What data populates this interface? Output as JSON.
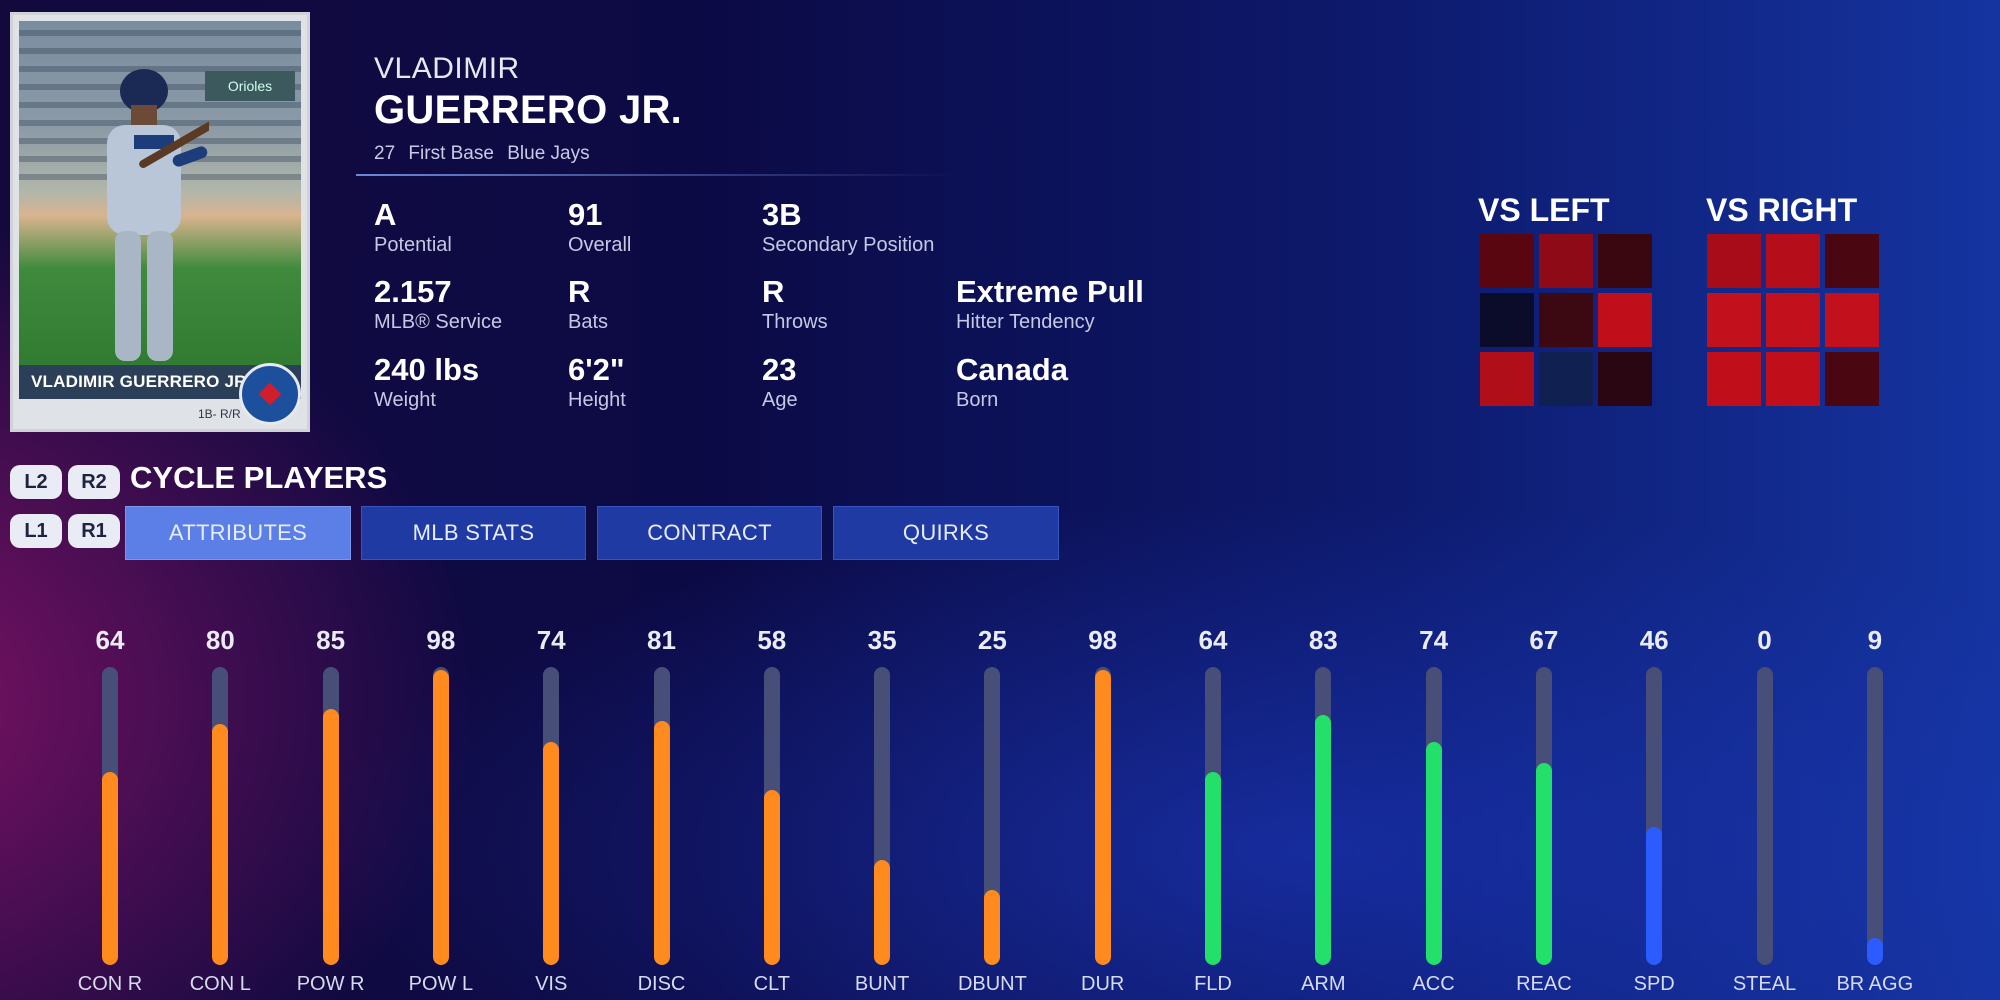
{
  "player": {
    "first_name": "VLADIMIR",
    "last_name": "GUERRERO JR.",
    "number": "27",
    "position": "First Base",
    "team": "Blue Jays"
  },
  "card": {
    "nameplate": "VLADIMIR GUERRERO JR.",
    "pos_bats_throws": "1B- R/R",
    "photo_sign": "Orioles"
  },
  "info": [
    {
      "value": "A",
      "label": "Potential"
    },
    {
      "value": "91",
      "label": "Overall"
    },
    {
      "value": "3B",
      "label": "Secondary Position"
    },
    {
      "value": "2.157",
      "label": "MLB® Service"
    },
    {
      "value": "R",
      "label": "Bats"
    },
    {
      "value": "R",
      "label": "Throws"
    },
    {
      "value": "Extreme Pull",
      "label": "Hitter Tendency"
    },
    {
      "value": "240 lbs",
      "label": "Weight"
    },
    {
      "value": "6'2\"",
      "label": "Height"
    },
    {
      "value": "23",
      "label": "Age"
    },
    {
      "value": "Canada",
      "label": "Born"
    }
  ],
  "hot_zones": {
    "vs_left": {
      "title": "VS LEFT",
      "cells": [
        "#5a0610",
        "#8e0a16",
        "#3a0610",
        "#0a0c2a",
        "#3c0812",
        "#c00f1b",
        "#b00e19",
        "#102050",
        "#2a0612"
      ]
    },
    "vs_right": {
      "title": "VS RIGHT",
      "cells": [
        "#a80c18",
        "#b50d19",
        "#4a0712",
        "#c2101c",
        "#c2101c",
        "#c2101c",
        "#c00f1b",
        "#c00f1b",
        "#4a0712"
      ]
    }
  },
  "controls": {
    "l2": "L2",
    "r2": "R2",
    "l1": "L1",
    "r1": "R1",
    "cycle_label": "CYCLE PLAYERS"
  },
  "tabs": [
    {
      "label": "ATTRIBUTES",
      "active": true
    },
    {
      "label": "MLB STATS",
      "active": false
    },
    {
      "label": "CONTRACT",
      "active": false
    },
    {
      "label": "QUIRKS",
      "active": false
    }
  ],
  "colors": {
    "hitting": "#ff8a1e",
    "fielding": "#22e06a",
    "running": "#2a5cff",
    "track": "#474e78"
  },
  "chart_data": {
    "type": "bar",
    "categories": [
      "CON R",
      "CON L",
      "POW R",
      "POW L",
      "VIS",
      "DISC",
      "CLT",
      "BUNT",
      "DBUNT",
      "DUR",
      "FLD",
      "ARM",
      "ACC",
      "REAC",
      "SPD",
      "STEAL",
      "BR AGG"
    ],
    "values": [
      64,
      80,
      85,
      98,
      74,
      81,
      58,
      35,
      25,
      98,
      64,
      83,
      74,
      67,
      46,
      0,
      9
    ],
    "groups": [
      "hitting",
      "hitting",
      "hitting",
      "hitting",
      "hitting",
      "hitting",
      "hitting",
      "hitting",
      "hitting",
      "hitting",
      "fielding",
      "fielding",
      "fielding",
      "fielding",
      "running",
      "running",
      "running"
    ],
    "ylim": [
      0,
      99
    ],
    "title": "",
    "xlabel": "",
    "ylabel": ""
  }
}
